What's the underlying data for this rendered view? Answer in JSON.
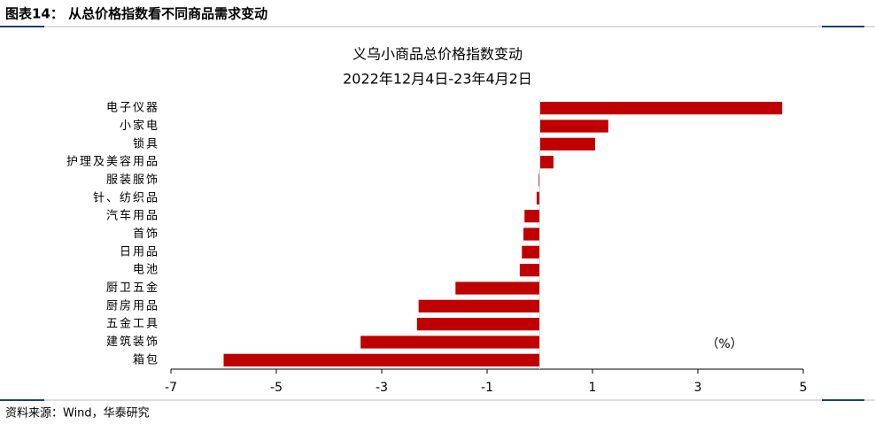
{
  "header": {
    "title": "图表14：  从总价格指数看不同商品需求变动"
  },
  "source": "资料来源：Wind，华泰研究",
  "chart_data": {
    "type": "bar",
    "orientation": "horizontal",
    "title": "义乌小商品总价格指数变动",
    "subtitle": "2022年12月4日-23年4月2日",
    "annotation": "（%）",
    "categories": [
      "电子仪器",
      "小家电",
      "锁具",
      "护理及美容用品",
      "服装服饰",
      "针、纺织品",
      "汽车用品",
      "首饰",
      "日用品",
      "电池",
      "厨卫五金",
      "厨房用品",
      "五金工具",
      "建筑装饰",
      "箱包"
    ],
    "values": [
      4.6,
      1.3,
      1.05,
      0.26,
      -0.02,
      -0.06,
      -0.29,
      -0.31,
      -0.34,
      -0.38,
      -1.6,
      -2.3,
      -2.33,
      -3.4,
      -6.0
    ],
    "color": "#c00000",
    "xlim": [
      -7,
      5
    ],
    "xticks": [
      -7,
      -5,
      -3,
      -1,
      1,
      3,
      5
    ],
    "grid": false
  }
}
